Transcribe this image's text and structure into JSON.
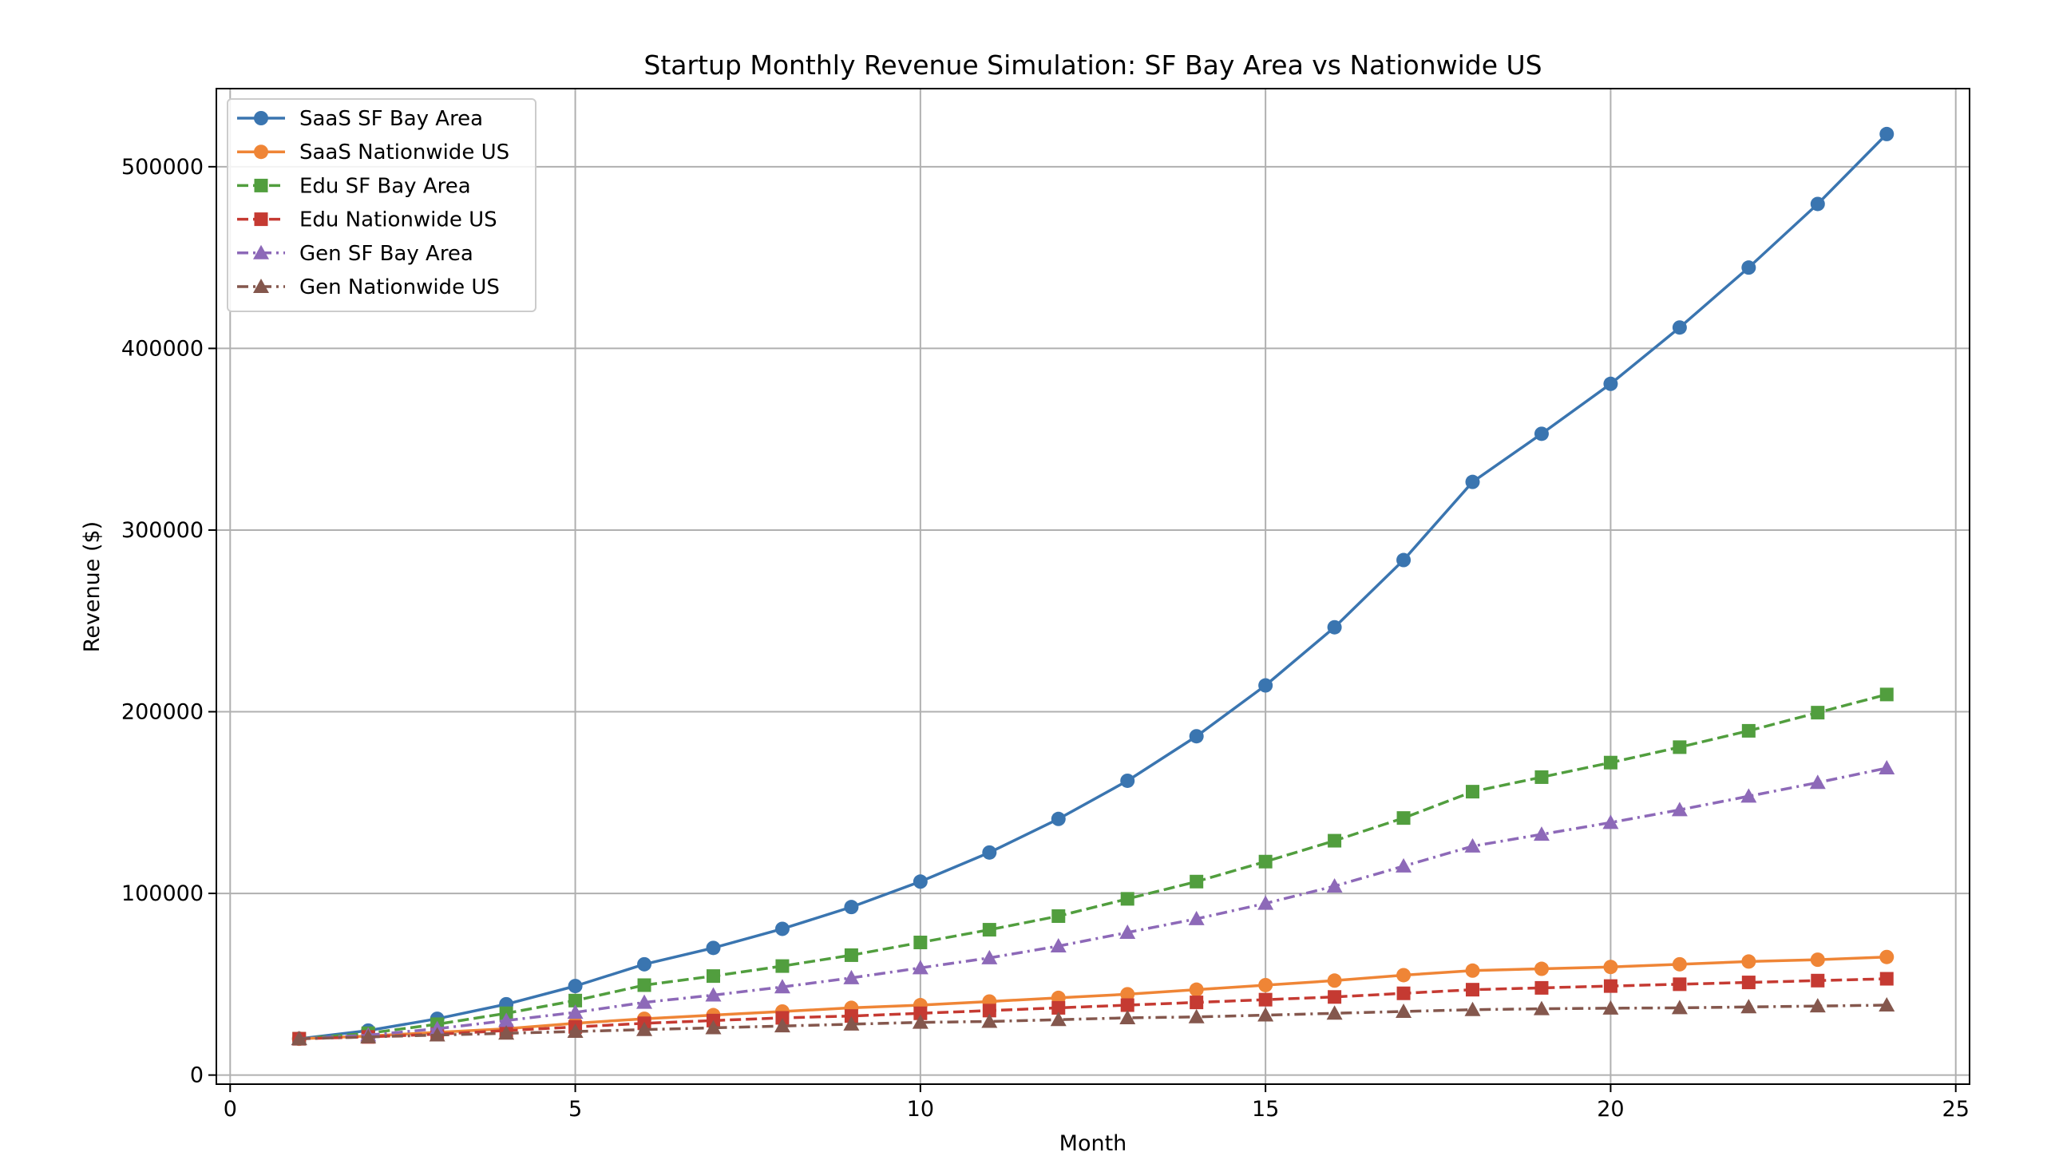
{
  "chart_data": {
    "type": "line",
    "title": "Startup Monthly Revenue Simulation: SF Bay Area vs Nationwide US",
    "xlabel": "Month",
    "ylabel": "Revenue ($)",
    "xlim": [
      -0.2,
      25.2
    ],
    "ylim": [
      -5000,
      543000
    ],
    "xticks": [
      0,
      5,
      10,
      15,
      20,
      25
    ],
    "yticks": [
      0,
      100000,
      200000,
      300000,
      400000,
      500000
    ],
    "grid": true,
    "legend_position": "top-left",
    "x": [
      1,
      2,
      3,
      4,
      5,
      6,
      7,
      8,
      9,
      10,
      11,
      12,
      13,
      14,
      15,
      16,
      17,
      18,
      19,
      20,
      21,
      22,
      23,
      24
    ],
    "series": [
      {
        "name": "SaaS SF Bay Area",
        "color": "#3a75b0",
        "marker": "circle",
        "linestyle": "solid",
        "values": [
          20000,
          24500,
          31000,
          39000,
          49000,
          61000,
          70000,
          80500,
          92500,
          106500,
          122500,
          141000,
          162000,
          186500,
          214500,
          246500,
          283500,
          326500,
          353000,
          380500,
          411500,
          444500,
          479500,
          518000
        ]
      },
      {
        "name": "SaaS Nationwide US",
        "color": "#ef8536",
        "marker": "circle",
        "linestyle": "solid",
        "values": [
          20000,
          21500,
          23500,
          25500,
          28500,
          31000,
          33000,
          35000,
          37000,
          38500,
          40500,
          42500,
          44500,
          47000,
          49500,
          52000,
          55000,
          57500,
          58500,
          59500,
          61000,
          62500,
          63500,
          65000
        ]
      },
      {
        "name": "Edu SF Bay Area",
        "color": "#519e3e",
        "marker": "square",
        "linestyle": "dashed",
        "values": [
          20000,
          23000,
          28000,
          34000,
          41000,
          49500,
          54500,
          60000,
          66000,
          73000,
          80000,
          87500,
          97000,
          106500,
          117500,
          129000,
          141500,
          156000,
          164000,
          172000,
          180500,
          189500,
          199500,
          209500
        ]
      },
      {
        "name": "Edu Nationwide US",
        "color": "#c53a32",
        "marker": "square",
        "linestyle": "dashed",
        "values": [
          20000,
          21000,
          22500,
          24500,
          26500,
          28500,
          30000,
          31500,
          32500,
          34000,
          35500,
          37000,
          38500,
          40000,
          41500,
          43000,
          45000,
          47000,
          48000,
          49000,
          50000,
          51000,
          52000,
          53000
        ]
      },
      {
        "name": "Gen SF Bay Area",
        "color": "#8d69b8",
        "marker": "triangle",
        "linestyle": "dashdot",
        "values": [
          20000,
          22000,
          25500,
          30000,
          34500,
          40000,
          44000,
          48500,
          53500,
          59000,
          64500,
          71000,
          78500,
          86000,
          94500,
          104000,
          115000,
          126000,
          132500,
          139000,
          146000,
          153500,
          161000,
          169000
        ]
      },
      {
        "name": "Gen Nationwide US",
        "color": "#84574d",
        "marker": "triangle",
        "linestyle": "dashdot",
        "values": [
          20000,
          21000,
          22000,
          23000,
          24000,
          25000,
          26000,
          27000,
          28000,
          29000,
          29500,
          30500,
          31500,
          32000,
          33000,
          34000,
          35000,
          36000,
          36500,
          36800,
          37000,
          37500,
          38000,
          38500
        ]
      }
    ]
  }
}
